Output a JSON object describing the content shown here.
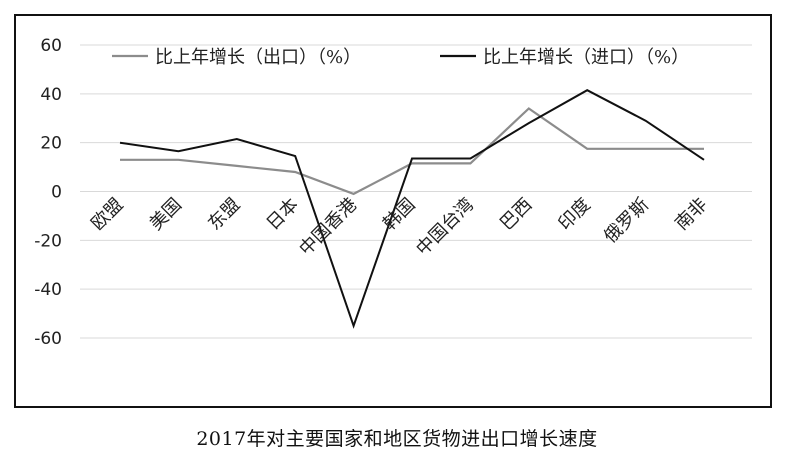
{
  "caption": "2017年对主要国家和地区货物进出口增长速度",
  "chart_data": {
    "type": "line",
    "title": "",
    "xlabel": "",
    "ylabel": "",
    "categories": [
      "欧盟",
      "美国",
      "东盟",
      "日本",
      "中国香港",
      "韩国",
      "中国台湾",
      "巴西",
      "印度",
      "俄罗斯",
      "南非"
    ],
    "series": [
      {
        "name": "比上年增长（出口）（%）",
        "color": "#8c8c8c",
        "values": [
          13,
          13,
          10.5,
          8,
          -1,
          11.5,
          11.5,
          34,
          17.5,
          17.5,
          17.5
        ]
      },
      {
        "name": "比上年增长（进口）（%）",
        "color": "#111111",
        "values": [
          20,
          16.5,
          21.5,
          14.5,
          -55,
          13.5,
          13.5,
          28,
          41.5,
          29,
          13
        ]
      }
    ],
    "ylim": [
      -60,
      60
    ],
    "yticks": [
      60,
      40,
      20,
      0,
      -20,
      -40,
      -60
    ],
    "grid": true,
    "legend_position": "top"
  }
}
